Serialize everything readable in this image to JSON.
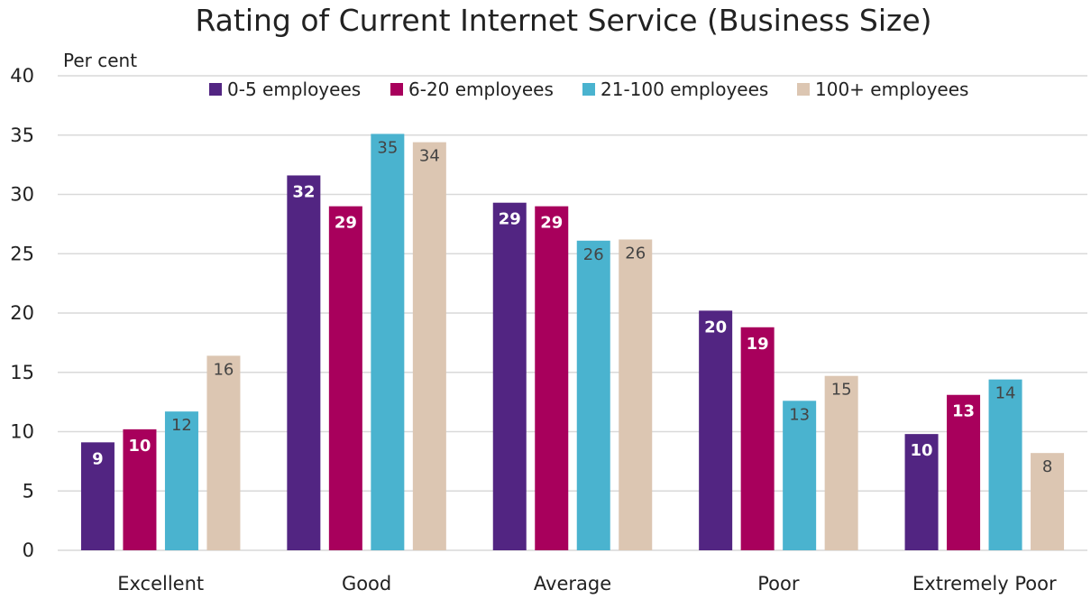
{
  "chart_data": {
    "type": "bar",
    "title": "Rating of Current Internet Service (Business Size)",
    "ylabel": "Per cent",
    "xlabel": "",
    "ylim": [
      0,
      40
    ],
    "yticks": [
      0,
      5,
      10,
      15,
      20,
      25,
      30,
      35,
      40
    ],
    "grid": true,
    "legend": "top",
    "categories": [
      "Excellent",
      "Good",
      "Average",
      "Poor",
      "Extremely Poor"
    ],
    "series": [
      {
        "name": "0-5 employees",
        "color": "#522582",
        "values": [
          9.1,
          31.6,
          29.3,
          20.2,
          9.8
        ],
        "labels": [
          "9",
          "32",
          "29",
          "20",
          "10"
        ],
        "label_style": "bold-white"
      },
      {
        "name": "6-20 employees",
        "color": "#a8005c",
        "values": [
          10.2,
          29.0,
          29.0,
          18.8,
          13.1
        ],
        "labels": [
          "10",
          "29",
          "29",
          "19",
          "13"
        ],
        "label_style": "bold-white"
      },
      {
        "name": "21-100 employees",
        "color": "#4ab3cf",
        "values": [
          11.7,
          35.1,
          26.1,
          12.6,
          14.4
        ],
        "labels": [
          "12",
          "35",
          "26",
          "13",
          "14"
        ],
        "label_style": "regular-dark"
      },
      {
        "name": "100+ employees",
        "color": "#dcc6b2",
        "values": [
          16.4,
          34.4,
          26.2,
          14.7,
          8.2
        ],
        "labels": [
          "16",
          "34",
          "26",
          "15",
          "8"
        ],
        "label_style": "regular-dark"
      }
    ]
  }
}
